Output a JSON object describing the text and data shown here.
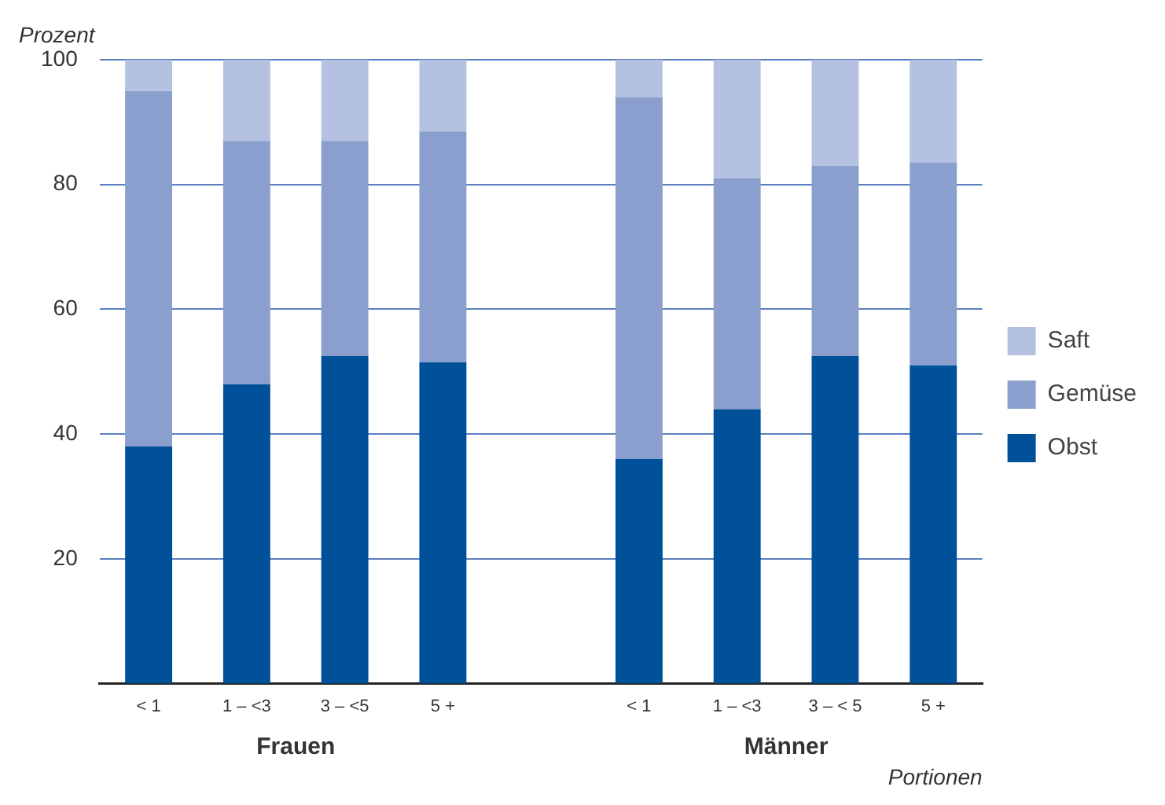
{
  "chart_data": {
    "type": "bar",
    "stacked": true,
    "ylabel": "Prozent",
    "xlabel": "Portionen",
    "categories": [
      "< 1",
      "1 – <3",
      "3 – <5",
      "5 +",
      null,
      "< 1",
      "1 – <3",
      "3 – < 5",
      "5 +"
    ],
    "series": [
      {
        "name": "Obst",
        "color": "#00509a",
        "values": [
          38,
          48,
          52.5,
          51.5,
          null,
          36,
          44,
          52.5,
          51
        ]
      },
      {
        "name": "Gemüse",
        "color": "#8a9fcd",
        "values": [
          57,
          39,
          34.5,
          37,
          null,
          58,
          37,
          30.5,
          32.5
        ]
      },
      {
        "name": "Saft",
        "color": "#b5c1e1",
        "values": [
          5,
          13,
          13,
          11.5,
          null,
          6,
          19,
          17,
          16.5
        ]
      }
    ],
    "annotations": [
      "Frauen",
      "Männer"
    ],
    "ylim": [
      0,
      100
    ],
    "yticks": [
      20,
      40,
      60,
      80,
      100
    ],
    "grid": "y",
    "legend": "right"
  }
}
